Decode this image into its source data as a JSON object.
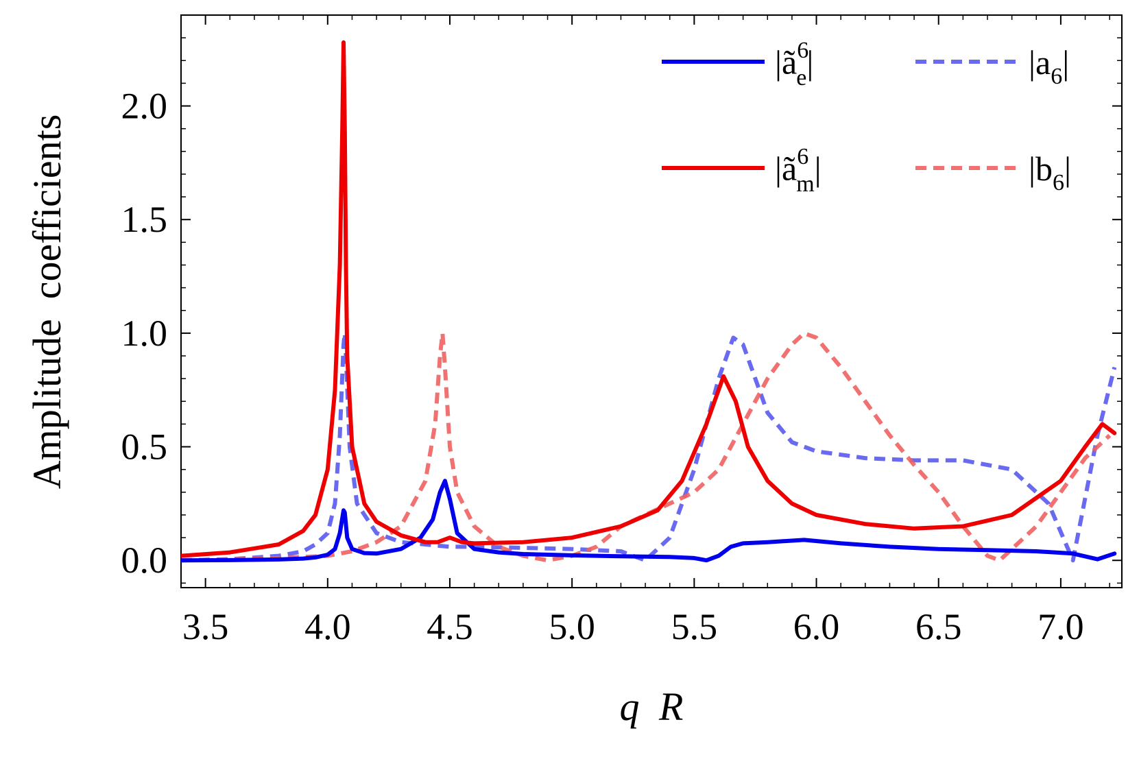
{
  "chart_data": {
    "type": "line",
    "title": "",
    "xlabel": "q R",
    "xlabel_parts": [
      "q",
      "R"
    ],
    "ylabel": "Amplitude  coefficients",
    "xlim": [
      3.4,
      7.25
    ],
    "ylim": [
      -0.12,
      2.4
    ],
    "xticks": [
      "3.5",
      "4.0",
      "4.5",
      "5.0",
      "5.5",
      "6.0",
      "6.5",
      "7.0"
    ],
    "xtick_values": [
      3.5,
      4.0,
      4.5,
      5.0,
      5.5,
      6.0,
      6.5,
      7.0
    ],
    "yticks": [
      "0.0",
      "0.5",
      "1.0",
      "1.5",
      "2.0"
    ],
    "ytick_values": [
      0.0,
      0.5,
      1.0,
      1.5,
      2.0
    ],
    "grid": false,
    "legend_position": "top-right",
    "series": [
      {
        "name": "|ã_e^6|",
        "legend_base": "ã",
        "legend_sub": "e",
        "legend_sup": "6",
        "color": "#0000ee",
        "style": "solid",
        "opacity": 1,
        "x": [
          3.4,
          3.6,
          3.8,
          3.9,
          3.95,
          4.0,
          4.03,
          4.05,
          4.065,
          4.07,
          4.08,
          4.1,
          4.15,
          4.2,
          4.3,
          4.38,
          4.43,
          4.46,
          4.48,
          4.5,
          4.53,
          4.6,
          4.7,
          4.8,
          5.0,
          5.2,
          5.4,
          5.5,
          5.55,
          5.6,
          5.65,
          5.7,
          5.8,
          5.95,
          6.1,
          6.3,
          6.5,
          6.7,
          6.9,
          7.05,
          7.15,
          7.22
        ],
        "y": [
          0.0,
          0.001,
          0.004,
          0.008,
          0.013,
          0.025,
          0.05,
          0.12,
          0.22,
          0.21,
          0.1,
          0.05,
          0.032,
          0.03,
          0.05,
          0.1,
          0.18,
          0.3,
          0.35,
          0.27,
          0.12,
          0.05,
          0.035,
          0.028,
          0.022,
          0.018,
          0.015,
          0.01,
          0.0,
          0.02,
          0.06,
          0.075,
          0.08,
          0.09,
          0.075,
          0.06,
          0.05,
          0.045,
          0.04,
          0.03,
          0.005,
          0.03
        ]
      },
      {
        "name": "|ã_m^6|",
        "legend_base": "ã",
        "legend_sub": "m",
        "legend_sup": "6",
        "color": "#ee0000",
        "style": "solid",
        "opacity": 1,
        "x": [
          3.4,
          3.6,
          3.8,
          3.9,
          3.95,
          4.0,
          4.03,
          4.05,
          4.06,
          4.065,
          4.07,
          4.075,
          4.08,
          4.1,
          4.15,
          4.2,
          4.3,
          4.4,
          4.45,
          4.5,
          4.55,
          4.6,
          4.8,
          5.0,
          5.2,
          5.35,
          5.45,
          5.55,
          5.62,
          5.67,
          5.72,
          5.8,
          5.9,
          6.0,
          6.2,
          6.4,
          6.6,
          6.8,
          7.0,
          7.1,
          7.17,
          7.22
        ],
        "y": [
          0.02,
          0.035,
          0.07,
          0.13,
          0.2,
          0.4,
          0.75,
          1.3,
          1.9,
          2.28,
          1.9,
          1.3,
          0.9,
          0.5,
          0.25,
          0.17,
          0.11,
          0.08,
          0.08,
          0.1,
          0.08,
          0.075,
          0.08,
          0.1,
          0.15,
          0.22,
          0.35,
          0.6,
          0.81,
          0.7,
          0.5,
          0.35,
          0.25,
          0.2,
          0.16,
          0.14,
          0.15,
          0.2,
          0.35,
          0.5,
          0.6,
          0.56
        ]
      },
      {
        "name": "|a_6|",
        "legend_base": "a",
        "legend_sub": "6",
        "legend_sup": "",
        "color": "#5a5af0",
        "style": "dashed",
        "opacity": 0.9,
        "x": [
          3.4,
          3.6,
          3.8,
          3.9,
          3.95,
          4.0,
          4.03,
          4.05,
          4.065,
          4.07,
          4.075,
          4.09,
          4.12,
          4.2,
          4.3,
          4.4,
          4.5,
          4.6,
          4.8,
          5.0,
          5.2,
          5.3,
          5.4,
          5.5,
          5.6,
          5.66,
          5.7,
          5.8,
          5.9,
          6.0,
          6.2,
          6.4,
          6.6,
          6.8,
          6.95,
          7.05,
          7.15,
          7.22
        ],
        "y": [
          0.0,
          0.005,
          0.02,
          0.04,
          0.07,
          0.12,
          0.25,
          0.55,
          0.95,
          1.0,
          0.9,
          0.5,
          0.25,
          0.12,
          0.08,
          0.07,
          0.06,
          0.06,
          0.055,
          0.05,
          0.04,
          0.0,
          0.1,
          0.4,
          0.8,
          0.98,
          0.95,
          0.65,
          0.52,
          0.48,
          0.45,
          0.44,
          0.44,
          0.4,
          0.25,
          0.0,
          0.55,
          0.85
        ]
      },
      {
        "name": "|b_6|",
        "legend_base": "b",
        "legend_sub": "6",
        "legend_sup": "",
        "color": "#f06060",
        "style": "dashed",
        "opacity": 0.9,
        "x": [
          3.4,
          3.6,
          3.8,
          4.0,
          4.1,
          4.2,
          4.3,
          4.4,
          4.44,
          4.46,
          4.47,
          4.48,
          4.5,
          4.53,
          4.6,
          4.7,
          4.8,
          4.9,
          5.0,
          5.1,
          5.2,
          5.3,
          5.4,
          5.5,
          5.6,
          5.7,
          5.8,
          5.9,
          5.95,
          6.0,
          6.1,
          6.2,
          6.3,
          6.4,
          6.5,
          6.6,
          6.7,
          6.75,
          6.8,
          6.9,
          7.0,
          7.1,
          7.2
        ],
        "y": [
          0.0,
          0.005,
          0.01,
          0.02,
          0.04,
          0.08,
          0.15,
          0.35,
          0.6,
          0.9,
          1.0,
          0.85,
          0.5,
          0.3,
          0.15,
          0.06,
          0.02,
          0.0,
          0.02,
          0.06,
          0.15,
          0.2,
          0.25,
          0.3,
          0.4,
          0.6,
          0.8,
          0.95,
          1.0,
          0.98,
          0.85,
          0.7,
          0.55,
          0.42,
          0.3,
          0.15,
          0.02,
          0.0,
          0.05,
          0.15,
          0.3,
          0.45,
          0.55
        ]
      }
    ]
  }
}
